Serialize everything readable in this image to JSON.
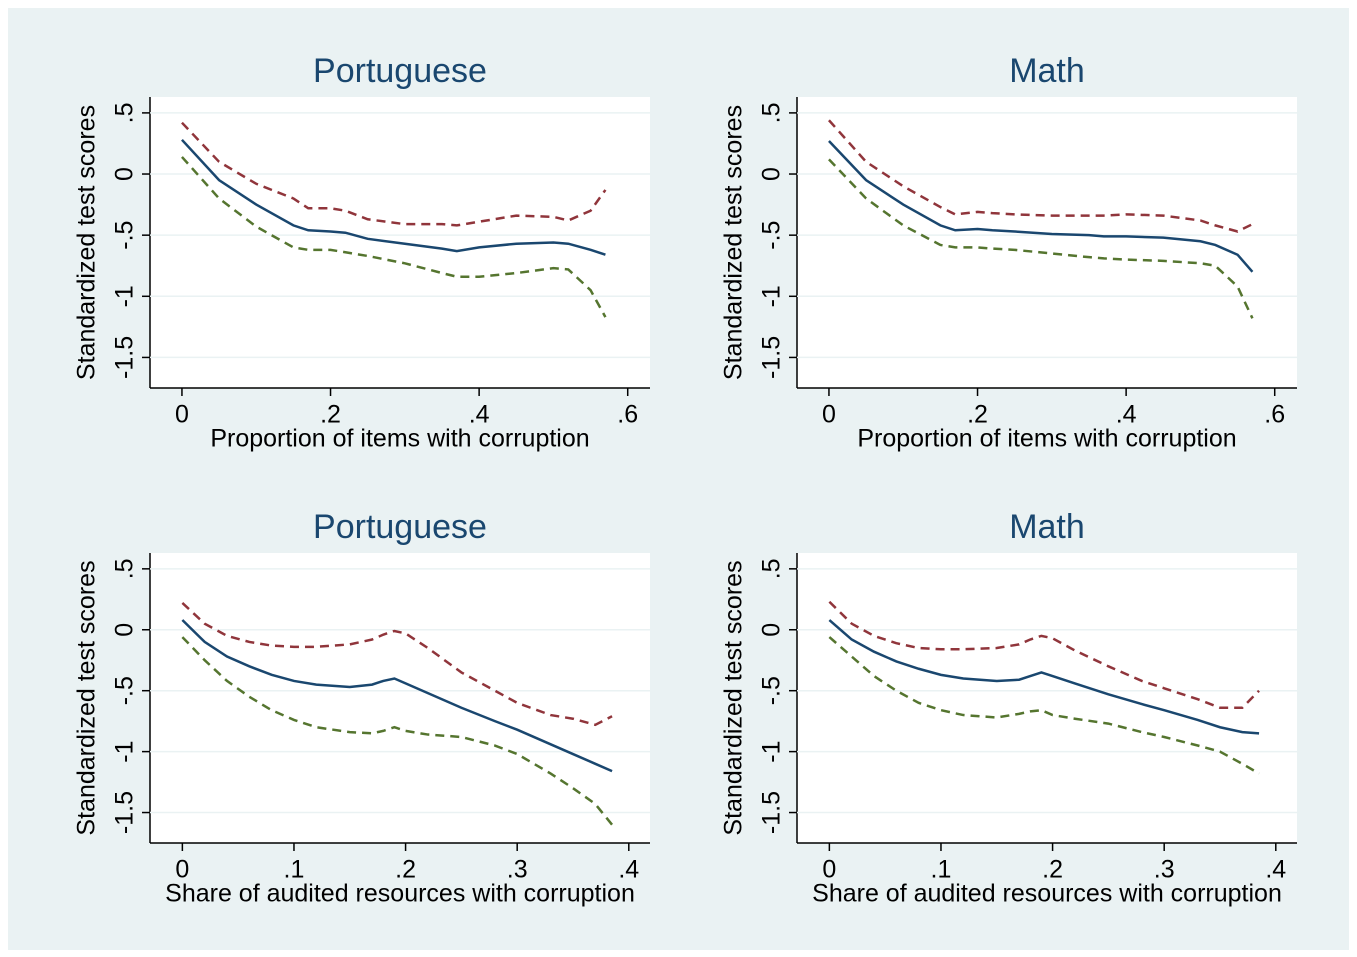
{
  "chart_data": [
    {
      "type": "line",
      "title": "Portuguese",
      "xlabel": "Proportion of items with corruption",
      "ylabel": "Standardized test scores",
      "x": [
        0,
        0.05,
        0.1,
        0.15,
        0.17,
        0.2,
        0.22,
        0.25,
        0.3,
        0.35,
        0.37,
        0.4,
        0.45,
        0.5,
        0.52,
        0.55,
        0.57
      ],
      "series": [
        {
          "color": "#1a476f",
          "values": [
            0.28,
            -0.05,
            -0.25,
            -0.42,
            -0.46,
            -0.47,
            -0.48,
            -0.53,
            -0.57,
            -0.61,
            -0.63,
            -0.6,
            -0.57,
            -0.56,
            -0.57,
            -0.62,
            -0.66
          ]
        },
        {
          "color": "#90353b",
          "values": [
            0.42,
            0.1,
            -0.08,
            -0.2,
            -0.28,
            -0.28,
            -0.3,
            -0.37,
            -0.41,
            -0.41,
            -0.42,
            -0.39,
            -0.34,
            -0.35,
            -0.38,
            -0.3,
            -0.13
          ]
        },
        {
          "color": "#55752f",
          "values": [
            0.14,
            -0.2,
            -0.43,
            -0.6,
            -0.62,
            -0.62,
            -0.64,
            -0.67,
            -0.73,
            -0.81,
            -0.84,
            -0.84,
            -0.81,
            -0.77,
            -0.78,
            -0.95,
            -1.17
          ]
        }
      ],
      "xlim": [
        -0.043,
        0.63
      ],
      "ylim": [
        -1.75,
        0.63
      ],
      "xticks": [
        0,
        {
          "value": 0.2,
          "label": ".2"
        },
        {
          "value": 0.4,
          "label": ".4"
        },
        {
          "value": 0.6,
          "label": ".6"
        }
      ],
      "yticks": [
        {
          "value": 0.5,
          "label": ".5"
        },
        0,
        {
          "value": -0.5,
          "label": "-.5"
        },
        -1,
        -1.5
      ],
      "grid": true
    },
    {
      "type": "line",
      "title": "Math",
      "xlabel": "Proportion of items with corruption",
      "ylabel": "Standardized test scores",
      "x": [
        0,
        0.05,
        0.1,
        0.15,
        0.17,
        0.2,
        0.22,
        0.25,
        0.3,
        0.35,
        0.37,
        0.4,
        0.45,
        0.5,
        0.52,
        0.55,
        0.57
      ],
      "series": [
        {
          "color": "#1a476f",
          "values": [
            0.27,
            -0.05,
            -0.25,
            -0.42,
            -0.46,
            -0.45,
            -0.46,
            -0.47,
            -0.49,
            -0.5,
            -0.51,
            -0.51,
            -0.52,
            -0.55,
            -0.58,
            -0.66,
            -0.8
          ]
        },
        {
          "color": "#90353b",
          "values": [
            0.44,
            0.1,
            -0.1,
            -0.27,
            -0.33,
            -0.31,
            -0.32,
            -0.33,
            -0.34,
            -0.34,
            -0.34,
            -0.33,
            -0.34,
            -0.38,
            -0.42,
            -0.47,
            -0.41
          ]
        },
        {
          "color": "#55752f",
          "values": [
            0.12,
            -0.2,
            -0.42,
            -0.58,
            -0.6,
            -0.6,
            -0.61,
            -0.62,
            -0.65,
            -0.68,
            -0.69,
            -0.7,
            -0.71,
            -0.73,
            -0.75,
            -0.92,
            -1.18
          ]
        }
      ],
      "xlim": [
        -0.043,
        0.63
      ],
      "ylim": [
        -1.75,
        0.63
      ],
      "xticks": [
        0,
        {
          "value": 0.2,
          "label": ".2"
        },
        {
          "value": 0.4,
          "label": ".4"
        },
        {
          "value": 0.6,
          "label": ".6"
        }
      ],
      "yticks": [
        {
          "value": 0.5,
          "label": ".5"
        },
        0,
        {
          "value": -0.5,
          "label": "-.5"
        },
        -1,
        -1.5
      ],
      "grid": true
    },
    {
      "type": "line",
      "title": "Portuguese",
      "xlabel": "Share of audited resources with corruption",
      "ylabel": "Standardized test scores",
      "x": [
        0,
        0.02,
        0.04,
        0.06,
        0.08,
        0.1,
        0.12,
        0.15,
        0.17,
        0.18,
        0.19,
        0.2,
        0.22,
        0.25,
        0.28,
        0.3,
        0.33,
        0.35,
        0.37,
        0.385
      ],
      "series": [
        {
          "color": "#1a476f",
          "values": [
            0.08,
            -0.1,
            -0.22,
            -0.3,
            -0.37,
            -0.42,
            -0.45,
            -0.47,
            -0.45,
            -0.42,
            -0.4,
            -0.44,
            -0.52,
            -0.64,
            -0.75,
            -0.82,
            -0.94,
            -1.02,
            -1.1,
            -1.16
          ]
        },
        {
          "color": "#90353b",
          "values": [
            0.22,
            0.05,
            -0.05,
            -0.1,
            -0.13,
            -0.14,
            -0.14,
            -0.12,
            -0.08,
            -0.04,
            -0.01,
            -0.03,
            -0.15,
            -0.35,
            -0.5,
            -0.6,
            -0.7,
            -0.73,
            -0.78,
            -0.71
          ]
        },
        {
          "color": "#55752f",
          "values": [
            -0.06,
            -0.25,
            -0.42,
            -0.55,
            -0.66,
            -0.74,
            -0.8,
            -0.84,
            -0.85,
            -0.83,
            -0.8,
            -0.83,
            -0.86,
            -0.88,
            -0.95,
            -1.02,
            -1.18,
            -1.3,
            -1.43,
            -1.6
          ]
        }
      ],
      "xlim": [
        -0.029,
        0.419
      ],
      "ylim": [
        -1.75,
        0.63
      ],
      "xticks": [
        0,
        {
          "value": 0.1,
          "label": ".1"
        },
        {
          "value": 0.2,
          "label": ".2"
        },
        {
          "value": 0.3,
          "label": ".3"
        },
        {
          "value": 0.4,
          "label": ".4"
        }
      ],
      "yticks": [
        {
          "value": 0.5,
          "label": ".5"
        },
        0,
        {
          "value": -0.5,
          "label": "-.5"
        },
        -1,
        -1.5
      ],
      "grid": true
    },
    {
      "type": "line",
      "title": "Math",
      "xlabel": "Share of audited resources with corruption",
      "ylabel": "Standardized test scores",
      "x": [
        0,
        0.02,
        0.04,
        0.06,
        0.08,
        0.1,
        0.12,
        0.15,
        0.17,
        0.18,
        0.19,
        0.2,
        0.22,
        0.25,
        0.28,
        0.3,
        0.33,
        0.35,
        0.37,
        0.385
      ],
      "series": [
        {
          "color": "#1a476f",
          "values": [
            0.08,
            -0.08,
            -0.18,
            -0.26,
            -0.32,
            -0.37,
            -0.4,
            -0.42,
            -0.41,
            -0.38,
            -0.35,
            -0.38,
            -0.44,
            -0.53,
            -0.61,
            -0.66,
            -0.74,
            -0.8,
            -0.84,
            -0.85
          ]
        },
        {
          "color": "#90353b",
          "values": [
            0.23,
            0.05,
            -0.05,
            -0.11,
            -0.15,
            -0.16,
            -0.16,
            -0.15,
            -0.12,
            -0.08,
            -0.05,
            -0.07,
            -0.17,
            -0.3,
            -0.42,
            -0.48,
            -0.57,
            -0.64,
            -0.64,
            -0.5
          ]
        },
        {
          "color": "#55752f",
          "values": [
            -0.06,
            -0.22,
            -0.38,
            -0.5,
            -0.6,
            -0.66,
            -0.7,
            -0.72,
            -0.69,
            -0.67,
            -0.66,
            -0.7,
            -0.73,
            -0.77,
            -0.84,
            -0.88,
            -0.95,
            -1.0,
            -1.1,
            -1.18
          ]
        }
      ],
      "xlim": [
        -0.029,
        0.419
      ],
      "ylim": [
        -1.75,
        0.63
      ],
      "xticks": [
        0,
        {
          "value": 0.1,
          "label": ".1"
        },
        {
          "value": 0.2,
          "label": ".2"
        },
        {
          "value": 0.3,
          "label": ".3"
        },
        {
          "value": 0.4,
          "label": ".4"
        }
      ],
      "yticks": [
        {
          "value": 0.5,
          "label": ".5"
        },
        0,
        {
          "value": -0.5,
          "label": "-.5"
        },
        -1,
        -1.5
      ],
      "grid": true
    }
  ]
}
